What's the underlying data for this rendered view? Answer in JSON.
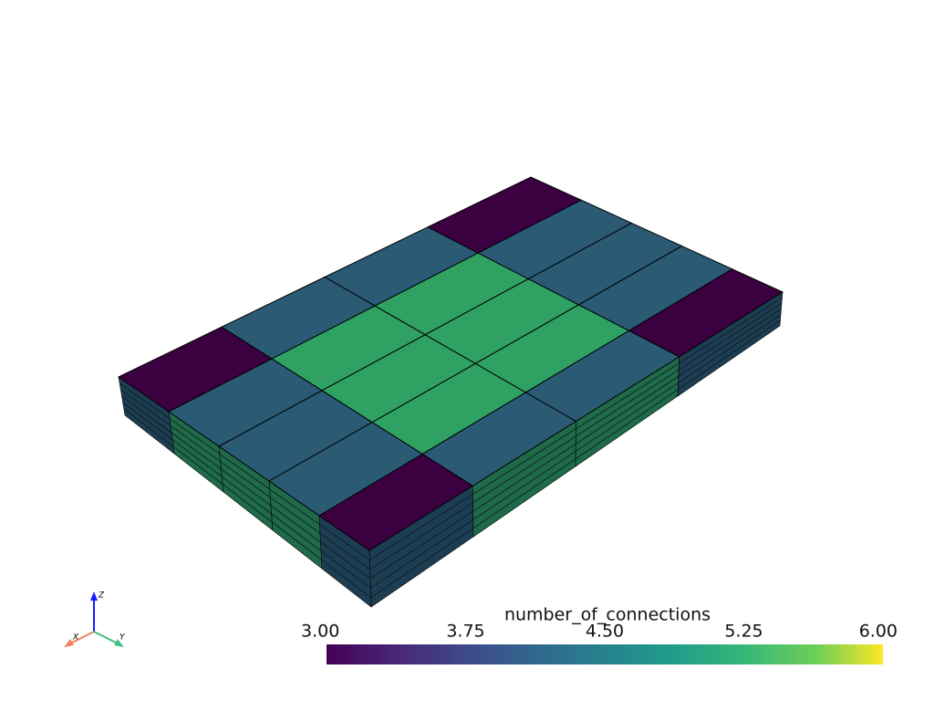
{
  "colorbar": {
    "title": "number_of_connections",
    "range": [
      3,
      6
    ],
    "ticks": [
      {
        "value": 3,
        "label": "3.00"
      },
      {
        "value": 3.75,
        "label": "3.75"
      },
      {
        "value": 4.5,
        "label": "4.50"
      },
      {
        "value": 5.25,
        "label": "5.25"
      },
      {
        "value": 6,
        "label": "6.00"
      }
    ]
  },
  "axes": {
    "x": "X",
    "y": "Y",
    "z": "Z"
  }
}
